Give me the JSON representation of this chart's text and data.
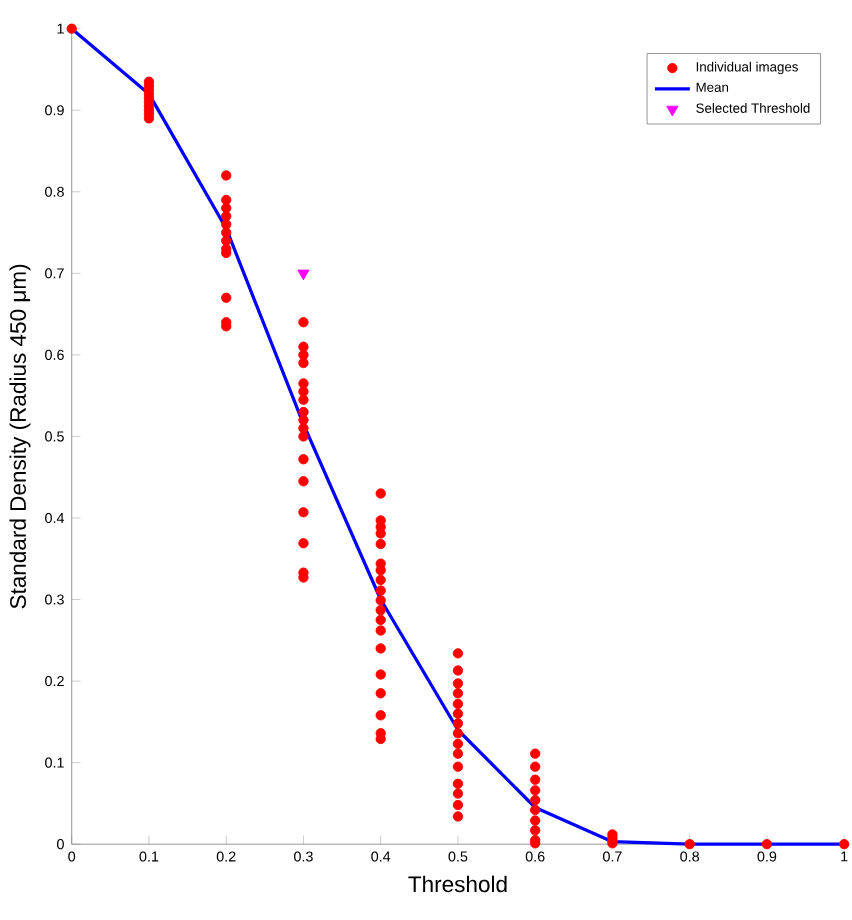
{
  "chart_data": {
    "type": "scatter",
    "xlabel": "Threshold",
    "ylabel": "Standard Density (Radius 450 μm)",
    "xlim": [
      0,
      1
    ],
    "ylim": [
      0,
      1
    ],
    "xticks": [
      0,
      0.1,
      0.2,
      0.3,
      0.4,
      0.5,
      0.6,
      0.7,
      0.8,
      0.9,
      1
    ],
    "yticks": [
      0,
      0.1,
      0.2,
      0.3,
      0.4,
      0.5,
      0.6,
      0.7,
      0.8,
      0.9,
      1
    ],
    "grid": false,
    "legend": "top right",
    "series": [
      {
        "name": "Individual images",
        "marker": "circle",
        "color": "#ff0000",
        "x": [
          0,
          0.1,
          0.1,
          0.1,
          0.1,
          0.1,
          0.1,
          0.1,
          0.1,
          0.1,
          0.1,
          0.2,
          0.2,
          0.2,
          0.2,
          0.2,
          0.2,
          0.2,
          0.2,
          0.2,
          0.2,
          0.2,
          0.2,
          0.3,
          0.3,
          0.3,
          0.3,
          0.3,
          0.3,
          0.3,
          0.3,
          0.3,
          0.3,
          0.3,
          0.3,
          0.3,
          0.3,
          0.3,
          0.3,
          0.3,
          0.4,
          0.4,
          0.4,
          0.4,
          0.4,
          0.4,
          0.4,
          0.4,
          0.4,
          0.4,
          0.4,
          0.4,
          0.4,
          0.4,
          0.4,
          0.4,
          0.4,
          0.4,
          0.4,
          0.5,
          0.5,
          0.5,
          0.5,
          0.5,
          0.5,
          0.5,
          0.5,
          0.5,
          0.5,
          0.5,
          0.5,
          0.5,
          0.5,
          0.5,
          0.6,
          0.6,
          0.6,
          0.6,
          0.6,
          0.6,
          0.6,
          0.6,
          0.6,
          0.6,
          0.7,
          0.7,
          0.7,
          0.7,
          0.8,
          0.9,
          1
        ],
        "values": [
          1,
          0.935,
          0.93,
          0.925,
          0.92,
          0.915,
          0.91,
          0.905,
          0.9,
          0.895,
          0.89,
          0.82,
          0.79,
          0.78,
          0.77,
          0.76,
          0.75,
          0.74,
          0.73,
          0.725,
          0.67,
          0.64,
          0.635,
          0.64,
          0.61,
          0.6,
          0.59,
          0.565,
          0.555,
          0.545,
          0.53,
          0.52,
          0.51,
          0.5,
          0.472,
          0.445,
          0.407,
          0.369,
          0.333,
          0.327,
          0.43,
          0.397,
          0.389,
          0.381,
          0.368,
          0.344,
          0.336,
          0.324,
          0.311,
          0.299,
          0.287,
          0.275,
          0.262,
          0.24,
          0.208,
          0.185,
          0.158,
          0.136,
          0.129,
          0.234,
          0.213,
          0.197,
          0.185,
          0.172,
          0.16,
          0.148,
          0.136,
          0.123,
          0.111,
          0.095,
          0.074,
          0.062,
          0.048,
          0.034,
          0.111,
          0.095,
          0.079,
          0.066,
          0.054,
          0.042,
          0.029,
          0.017,
          0.005,
          0.001,
          0.012,
          0.008,
          0.004,
          0.001,
          0,
          0,
          0
        ]
      },
      {
        "name": "Mean",
        "type": "line",
        "marker": "none",
        "color": "#0000ff",
        "x": [
          0,
          0.1,
          0.2,
          0.3,
          0.4,
          0.5,
          0.6,
          0.7,
          0.8,
          0.9,
          1
        ],
        "values": [
          1,
          0.92,
          0.755,
          0.515,
          0.3,
          0.14,
          0.045,
          0.003,
          0,
          0,
          0
        ]
      },
      {
        "name": "Selected Threshold",
        "marker": "triangle",
        "color": "#ff00ff",
        "x": [
          0.3
        ],
        "values": [
          0.7
        ]
      }
    ]
  }
}
